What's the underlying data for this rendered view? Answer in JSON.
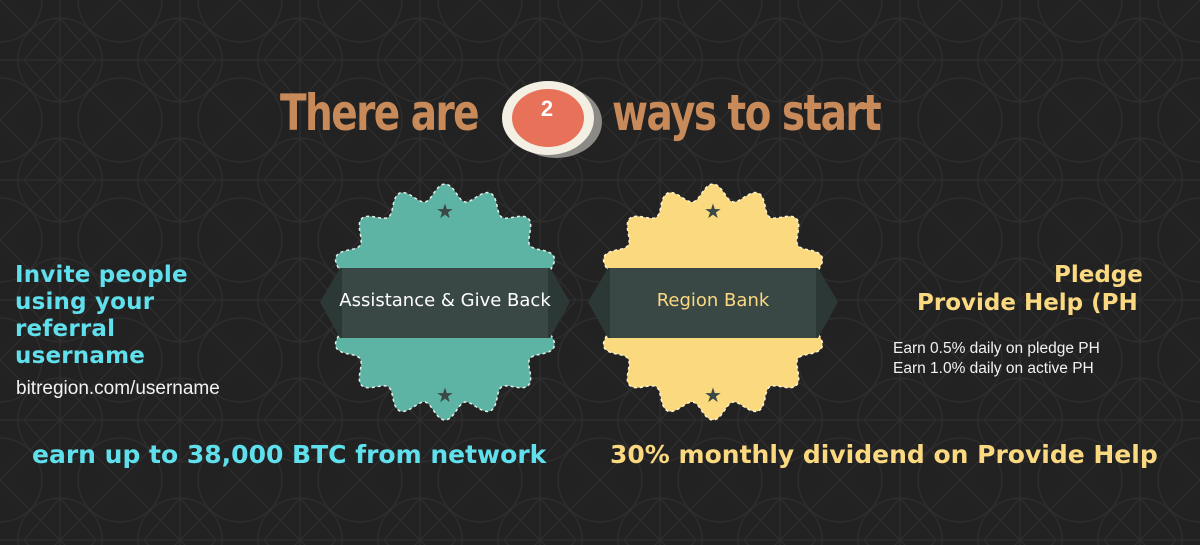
{
  "headline": {
    "prefix": "There are",
    "number": "2",
    "suffix": "ways to start"
  },
  "badges": [
    {
      "label": "Assistance & Give Back",
      "color": "#5db3a4",
      "icon": "star-icon"
    },
    {
      "label": "Region Bank",
      "color": "#fbd97e",
      "icon": "star-icon"
    }
  ],
  "left_panel": {
    "title_lines": [
      "Invite people",
      "using your",
      "referral",
      "username"
    ],
    "url": "bitregion.com/username",
    "earn": "earn up to 38,000 BTC from network"
  },
  "right_panel": {
    "title_line_1": "Pledge",
    "title_line_2": "Provide Help (PH",
    "earn_lines": [
      "Earn 0.5% daily on pledge PH",
      "Earn 1.0% daily on active PH"
    ],
    "dividend": "30% monthly dividend on Provide Help"
  },
  "colors": {
    "background": "#232222",
    "headline": "#c98a5a",
    "number_badge": "#e8715a",
    "cyan_text": "#5fe0ec",
    "yellow_text": "#fbd981",
    "ribbon": "#394745"
  }
}
